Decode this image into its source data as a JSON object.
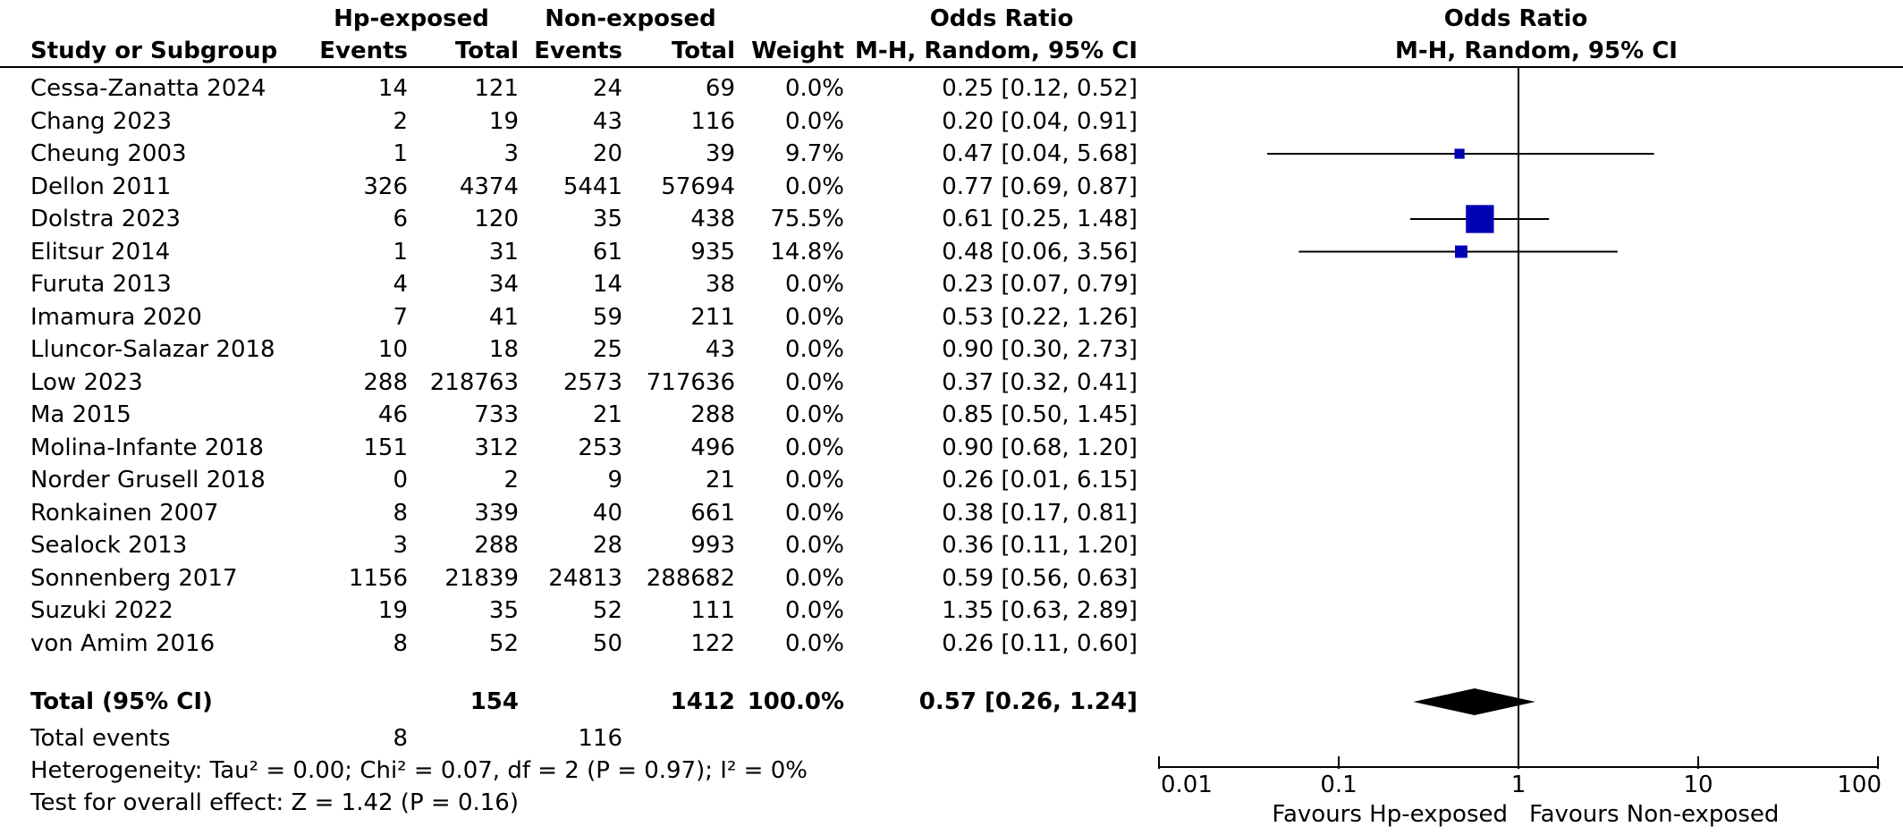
{
  "header": {
    "group1": "Hp-exposed",
    "group2": "Non-exposed",
    "or_col_title": "Odds Ratio",
    "study_col": "Study or Subgroup",
    "events": "Events",
    "total": "Total",
    "weight": "Weight",
    "or_method": "M-H, Random, 95% CI",
    "plot_title": "Odds Ratio",
    "plot_method": "M-H, Random, 95% CI"
  },
  "studies": [
    {
      "name": "Cessa-Zanatta 2024",
      "e1": "14",
      "t1": "121",
      "e2": "24",
      "t2": "69",
      "weight": "0.0%",
      "ci": "0.25 [0.12, 0.52]"
    },
    {
      "name": "Chang 2023",
      "e1": "2",
      "t1": "19",
      "e2": "43",
      "t2": "116",
      "weight": "0.0%",
      "ci": "0.20 [0.04, 0.91]"
    },
    {
      "name": "Cheung 2003",
      "e1": "1",
      "t1": "3",
      "e2": "20",
      "t2": "39",
      "weight": "9.7%",
      "ci": "0.47 [0.04, 5.68]"
    },
    {
      "name": "Dellon 2011",
      "e1": "326",
      "t1": "4374",
      "e2": "5441",
      "t2": "57694",
      "weight": "0.0%",
      "ci": "0.77 [0.69, 0.87]"
    },
    {
      "name": "Dolstra 2023",
      "e1": "6",
      "t1": "120",
      "e2": "35",
      "t2": "438",
      "weight": "75.5%",
      "ci": "0.61 [0.25, 1.48]"
    },
    {
      "name": "Elitsur 2014",
      "e1": "1",
      "t1": "31",
      "e2": "61",
      "t2": "935",
      "weight": "14.8%",
      "ci": "0.48 [0.06, 3.56]"
    },
    {
      "name": "Furuta 2013",
      "e1": "4",
      "t1": "34",
      "e2": "14",
      "t2": "38",
      "weight": "0.0%",
      "ci": "0.23 [0.07, 0.79]"
    },
    {
      "name": "Imamura 2020",
      "e1": "7",
      "t1": "41",
      "e2": "59",
      "t2": "211",
      "weight": "0.0%",
      "ci": "0.53 [0.22, 1.26]"
    },
    {
      "name": "Lluncor-Salazar 2018",
      "e1": "10",
      "t1": "18",
      "e2": "25",
      "t2": "43",
      "weight": "0.0%",
      "ci": "0.90 [0.30, 2.73]"
    },
    {
      "name": "Low 2023",
      "e1": "288",
      "t1": "218763",
      "e2": "2573",
      "t2": "717636",
      "weight": "0.0%",
      "ci": "0.37 [0.32, 0.41]"
    },
    {
      "name": "Ma 2015",
      "e1": "46",
      "t1": "733",
      "e2": "21",
      "t2": "288",
      "weight": "0.0%",
      "ci": "0.85 [0.50, 1.45]"
    },
    {
      "name": "Molina-Infante 2018",
      "e1": "151",
      "t1": "312",
      "e2": "253",
      "t2": "496",
      "weight": "0.0%",
      "ci": "0.90 [0.68, 1.20]"
    },
    {
      "name": "Norder Grusell 2018",
      "e1": "0",
      "t1": "2",
      "e2": "9",
      "t2": "21",
      "weight": "0.0%",
      "ci": "0.26 [0.01, 6.15]"
    },
    {
      "name": "Ronkainen 2007",
      "e1": "8",
      "t1": "339",
      "e2": "40",
      "t2": "661",
      "weight": "0.0%",
      "ci": "0.38 [0.17, 0.81]"
    },
    {
      "name": "Sealock 2013",
      "e1": "3",
      "t1": "288",
      "e2": "28",
      "t2": "993",
      "weight": "0.0%",
      "ci": "0.36 [0.11, 1.20]"
    },
    {
      "name": "Sonnenberg 2017",
      "e1": "1156",
      "t1": "21839",
      "e2": "24813",
      "t2": "288682",
      "weight": "0.0%",
      "ci": "0.59 [0.56, 0.63]"
    },
    {
      "name": "Suzuki 2022",
      "e1": "19",
      "t1": "35",
      "e2": "52",
      "t2": "111",
      "weight": "0.0%",
      "ci": "1.35 [0.63, 2.89]"
    },
    {
      "name": "von Amim 2016",
      "e1": "8",
      "t1": "52",
      "e2": "50",
      "t2": "122",
      "weight": "0.0%",
      "ci": "0.26 [0.11, 0.60]"
    }
  ],
  "total": {
    "label": "Total (95% CI)",
    "t1": "154",
    "t2": "1412",
    "weight": "100.0%",
    "ci": "0.57 [0.26, 1.24]"
  },
  "total_events": {
    "label": "Total events",
    "e1": "8",
    "e2": "116"
  },
  "heterogeneity": "Heterogeneity: Tau² = 0.00; Chi² = 0.07, df = 2 (P = 0.97); I² = 0%",
  "overall_effect": "Test for overall effect: Z = 1.42 (P = 0.16)",
  "colors": {
    "marker": "#0000b4",
    "diamond": "#000000",
    "line": "#000000"
  },
  "chart_data": {
    "type": "forest",
    "scale": "log",
    "xlim": [
      0.01,
      100
    ],
    "ticks": [
      0.01,
      0.1,
      1,
      10,
      100
    ],
    "tick_labels": [
      "0.01",
      "0.1",
      "1",
      "10",
      "100"
    ],
    "null_value": 1,
    "xlabel_left": "Favours Hp-exposed",
    "xlabel_right": "Favours Non-exposed",
    "plotted": [
      {
        "study": "Cheung 2003",
        "or": 0.47,
        "lo": 0.04,
        "hi": 5.68,
        "weight": 9.7
      },
      {
        "study": "Dolstra 2023",
        "or": 0.61,
        "lo": 0.25,
        "hi": 1.48,
        "weight": 75.5
      },
      {
        "study": "Elitsur 2014",
        "or": 0.48,
        "lo": 0.06,
        "hi": 3.56,
        "weight": 14.8
      }
    ],
    "pooled": {
      "or": 0.57,
      "lo": 0.26,
      "hi": 1.24
    }
  }
}
